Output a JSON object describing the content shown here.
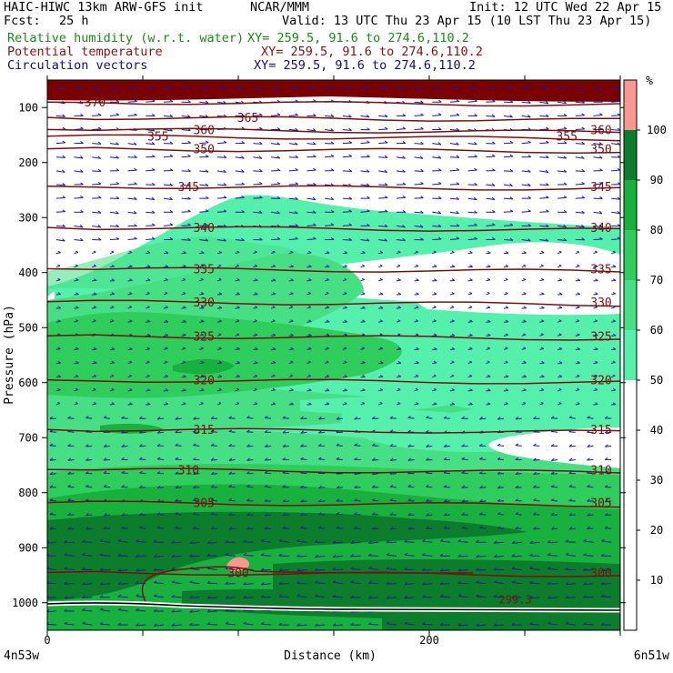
{
  "header": {
    "model": "HAIC-HIWC 13km ARW-GFS init",
    "center": "NCAR/MMM",
    "init": "Init: 12 UTC Wed 22 Apr 15",
    "fcst_label": "Fcst:",
    "fcst_value": "25 h",
    "valid": "Valid: 13 UTC Thu 23 Apr 15 (10 LST Thu 23 Apr 15)",
    "fields": [
      {
        "name": "Relative humidity (w.r.t. water)",
        "xy": "XY= 259.5, 91.6 to 274.6,110.2",
        "color": "#1a8a1a"
      },
      {
        "name": "Potential temperature",
        "xy": "XY= 259.5, 91.6 to 274.6,110.2",
        "color": "#8b1010"
      },
      {
        "name": "Circulation vectors",
        "xy": "XY= 259.5, 91.6 to 274.6,110.2",
        "color": "#10107a"
      }
    ]
  },
  "chart_data": {
    "type": "heatmap",
    "ylabel": "Pressure (hPa)",
    "xlabel": "Distance (km)",
    "y_ticks": [
      100,
      200,
      300,
      400,
      500,
      600,
      700,
      800,
      900,
      1000
    ],
    "x_ticks": [
      0,
      200
    ],
    "x_range": [
      0,
      300
    ],
    "y_range_hpa": [
      1050,
      50
    ],
    "left_endpoint": "4n53w",
    "right_endpoint": "6n51w",
    "colorbar": {
      "unit": "%",
      "labels": [
        10,
        20,
        30,
        40,
        50,
        60,
        70,
        80,
        90,
        100
      ],
      "levels": [
        50,
        60,
        70,
        80,
        90,
        100
      ],
      "colors": [
        "#55f0ab",
        "#46df84",
        "#2fcd5c",
        "#18b13d",
        "#0c7d2a",
        "#f99890"
      ]
    },
    "theta_contours": [
      {
        "value": 370,
        "p": 90,
        "labels": [
          {
            "text": "370",
            "x": 25
          }
        ]
      },
      {
        "value": 365,
        "p": 118,
        "labels": [
          {
            "text": "365",
            "x": 105
          }
        ]
      },
      {
        "value": 360,
        "p": 140,
        "labels": [
          {
            "text": "360",
            "x": 82
          },
          {
            "text": "360",
            "x": 290
          }
        ]
      },
      {
        "value": 355,
        "p": 152,
        "labels": [
          {
            "text": "355",
            "x": 58
          },
          {
            "text": "355",
            "x": 272
          }
        ]
      },
      {
        "value": 350,
        "p": 175,
        "labels": [
          {
            "text": "350",
            "x": 82
          },
          {
            "text": "350",
            "x": 290
          }
        ]
      },
      {
        "value": 345,
        "p": 243,
        "labels": [
          {
            "text": "345",
            "x": 74
          },
          {
            "text": "345",
            "x": 290
          }
        ]
      },
      {
        "value": 340,
        "p": 318,
        "labels": [
          {
            "text": "340",
            "x": 82
          },
          {
            "text": "340",
            "x": 290
          }
        ]
      },
      {
        "value": 335,
        "p": 393,
        "labels": [
          {
            "text": "335",
            "x": 82
          },
          {
            "text": "335",
            "x": 290
          }
        ]
      },
      {
        "value": 330,
        "p": 453,
        "labels": [
          {
            "text": "330",
            "x": 82
          },
          {
            "text": "330",
            "x": 290
          }
        ]
      },
      {
        "value": 325,
        "p": 515,
        "labels": [
          {
            "text": "325",
            "x": 82
          },
          {
            "text": "325",
            "x": 290
          }
        ]
      },
      {
        "value": 320,
        "p": 595,
        "labels": [
          {
            "text": "320",
            "x": 82
          },
          {
            "text": "320",
            "x": 290
          }
        ]
      },
      {
        "value": 315,
        "p": 685,
        "labels": [
          {
            "text": "315",
            "x": 82
          },
          {
            "text": "315",
            "x": 290
          }
        ]
      },
      {
        "value": 310,
        "p": 758,
        "labels": [
          {
            "text": "310",
            "x": 74
          },
          {
            "text": "310",
            "x": 290
          }
        ]
      },
      {
        "value": 305,
        "p": 818,
        "labels": [
          {
            "text": "305",
            "x": 82
          },
          {
            "text": "305",
            "x": 290
          }
        ]
      },
      {
        "value": 300,
        "p": 945,
        "labels": [
          {
            "text": "300",
            "x": 100
          },
          {
            "text": "300",
            "x": 290
          }
        ]
      }
    ],
    "annotations": [
      {
        "text": "299.3",
        "x": 245,
        "p": 995
      }
    ]
  }
}
